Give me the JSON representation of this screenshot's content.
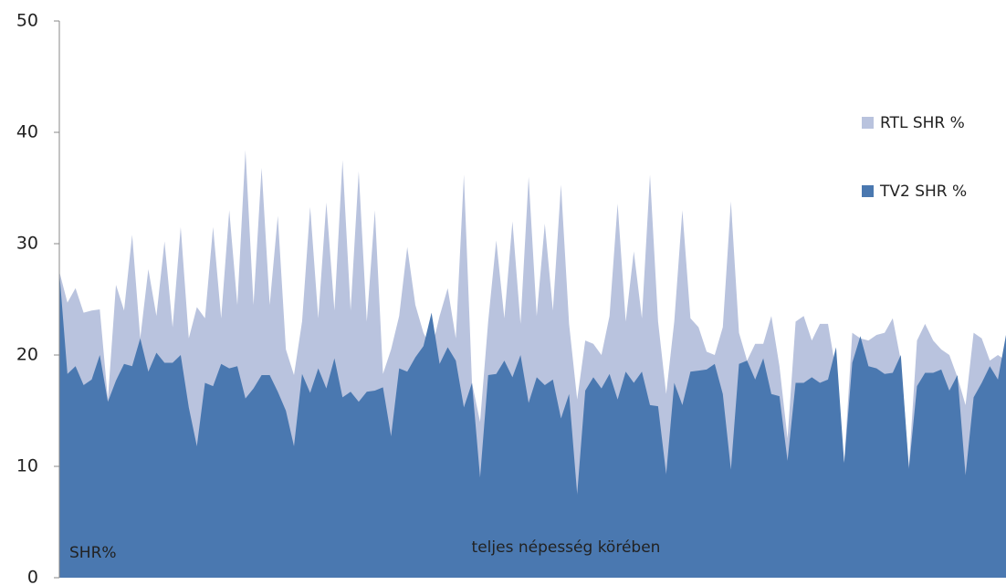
{
  "chart_data": {
    "type": "area",
    "categories": [
      null,
      null,
      null,
      null,
      null,
      null,
      null,
      null,
      null,
      null,
      null,
      null,
      null,
      null,
      null,
      null,
      null,
      null,
      null,
      null,
      null,
      null,
      null,
      null,
      null,
      null,
      null,
      null,
      null,
      null,
      null,
      null,
      null,
      null,
      null,
      null,
      null,
      null,
      null,
      null,
      null,
      null,
      null,
      null,
      null,
      null,
      null,
      null,
      null,
      null,
      null,
      null,
      null,
      null,
      null,
      null,
      null,
      null,
      null,
      null,
      null,
      null,
      null,
      null,
      null,
      null,
      null,
      null,
      null,
      null,
      null,
      null,
      null,
      null,
      null,
      null,
      null,
      null,
      null,
      null,
      null,
      null,
      null,
      null,
      null,
      null,
      null,
      null,
      null,
      null,
      null,
      null,
      null,
      null,
      null,
      null,
      null,
      null,
      null,
      null,
      null,
      null,
      null,
      null,
      null,
      null,
      null,
      null,
      null,
      null,
      null,
      null,
      null,
      null,
      null,
      null,
      null,
      null
    ],
    "series": [
      {
        "name": "RTL SHR %",
        "color": "#b9c3de",
        "values": [
          27.5,
          24.7,
          26,
          23.8,
          24,
          24.1,
          16,
          26.3,
          24,
          30.8,
          21.5,
          27.7,
          23.5,
          30.2,
          22.5,
          31.5,
          21.5,
          24.3,
          23.3,
          31.5,
          23.3,
          33,
          24.5,
          38.4,
          24.5,
          36.8,
          24.5,
          32.5,
          20.5,
          18.2,
          23,
          33.3,
          23.3,
          33.7,
          24,
          37.5,
          24,
          36.5,
          23,
          33,
          18.3,
          20.5,
          23.5,
          29.7,
          24.5,
          22,
          20.5,
          23.5,
          26,
          21.5,
          36.2,
          17.5,
          14,
          23,
          30.3,
          23.3,
          32,
          22.8,
          36,
          23.5,
          31.8,
          24,
          35.3,
          22.8,
          16,
          21.3,
          21,
          20,
          23.5,
          33.6,
          23,
          29.3,
          23.3,
          36.2,
          23,
          16.5,
          23,
          33,
          23.3,
          22.5,
          20.3,
          20,
          22.5,
          33.8,
          22,
          19.5,
          21,
          21,
          23.5,
          19,
          12.5,
          23,
          23.5,
          21.3,
          22.8,
          22.8,
          18.5,
          10.3,
          22,
          21.5,
          21.3,
          21.8,
          22,
          23.3,
          19.5,
          10,
          21.3,
          22.8,
          21.3,
          20.5,
          20,
          18,
          15.5,
          22,
          21.5,
          19.5,
          20,
          19.5
        ]
      },
      {
        "name": "TV2 SHR %",
        "color": "#4a78b0",
        "values": [
          27.5,
          18.3,
          19,
          17.3,
          17.8,
          20,
          15.8,
          17.7,
          19.2,
          19,
          21.5,
          18.5,
          20.2,
          19.3,
          19.3,
          20,
          15.3,
          11.8,
          17.5,
          17.2,
          19.2,
          18.8,
          19,
          16.1,
          17,
          18.2,
          18.2,
          16.7,
          15,
          11.8,
          18.3,
          16.6,
          18.8,
          17,
          19.7,
          16.2,
          16.7,
          15.8,
          16.7,
          16.8,
          17.1,
          12.7,
          18.8,
          18.5,
          19.8,
          20.8,
          23.8,
          19.2,
          20.7,
          19.5,
          15.3,
          17.5,
          9,
          18.2,
          18.3,
          19.5,
          18,
          20,
          15.7,
          18,
          17.3,
          17.8,
          14.3,
          16.5,
          7.5,
          16.8,
          18,
          17,
          18.3,
          16,
          18.5,
          17.5,
          18.5,
          15.5,
          15.4,
          9.3,
          17.5,
          15.5,
          18.5,
          18.6,
          18.7,
          19.2,
          16.5,
          9.7,
          19.2,
          19.5,
          17.8,
          19.7,
          16.5,
          16.3,
          10.5,
          17.5,
          17.5,
          18,
          17.5,
          17.8,
          20.7,
          10.3,
          19.3,
          21.7,
          19,
          18.8,
          18.3,
          18.4,
          20,
          9.8,
          17.2,
          18.4,
          18.4,
          18.7,
          16.8,
          18.2,
          9.2,
          16.2,
          17.5,
          19,
          17.8,
          21.8
        ]
      }
    ],
    "ylim": [
      0,
      50
    ],
    "yticks": [
      0,
      10,
      20,
      30,
      40,
      50
    ],
    "grid": false,
    "legend": "right",
    "annotations": [
      "SHR%",
      "teljes népesség körében"
    ]
  }
}
